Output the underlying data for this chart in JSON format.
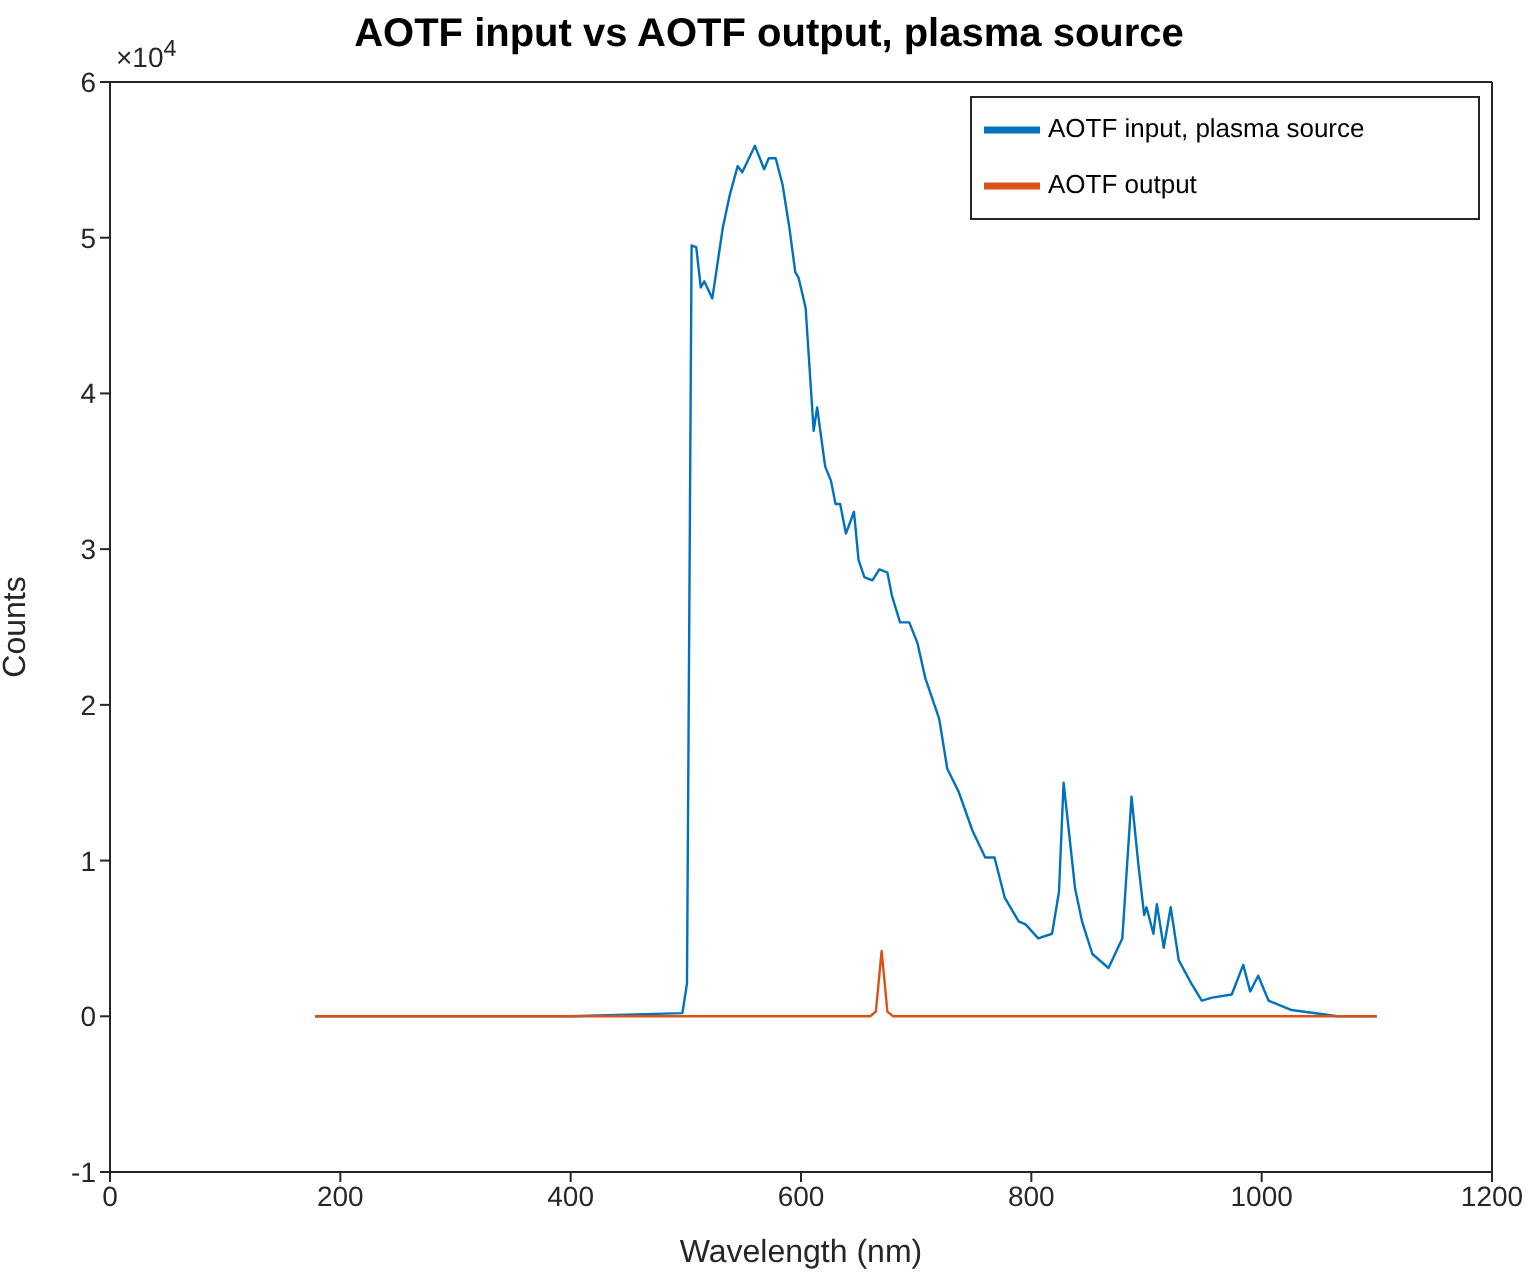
{
  "chart_data": {
    "type": "line",
    "title": "AOTF input vs AOTF output, plasma source",
    "xlabel": "Wavelength (nm)",
    "ylabel": "Counts",
    "annotations": [
      "×10$^{4}$"
    ],
    "xlim": [
      0,
      1200
    ],
    "xticks": [
      0,
      200,
      400,
      600,
      800,
      1000,
      1200
    ],
    "ylim": [
      -1,
      6
    ],
    "yticks": [
      -1,
      0,
      1,
      2,
      3,
      4,
      5,
      6
    ],
    "grid": false,
    "legend": "top right",
    "marker": "none",
    "line_style": "solid",
    "series": [
      {
        "name": "AOTF input, plasma source",
        "color": "#0072bd",
        "x": [
          178,
          400,
          497,
          501,
          505,
          509,
          513,
          516,
          523,
          532,
          538,
          545,
          549,
          560,
          568,
          572,
          578,
          584,
          590,
          595,
          598,
          604,
          611,
          614,
          621,
          626,
          630,
          634,
          639,
          646,
          650,
          655,
          662,
          668,
          675,
          679,
          686,
          694,
          701,
          708,
          720,
          727,
          737,
          749,
          760,
          768,
          777,
          789,
          795,
          806,
          818,
          824,
          828,
          832,
          838,
          844,
          853,
          867,
          879,
          887,
          893,
          898,
          900,
          906,
          909,
          915,
          921,
          928,
          939,
          948,
          957,
          974,
          984,
          990,
          997,
          1006,
          1026,
          1066,
          1100
        ],
        "values": [
          0,
          0,
          0.02,
          0.21,
          4.95,
          4.94,
          4.68,
          4.72,
          4.61,
          5.06,
          5.27,
          5.46,
          5.42,
          5.59,
          5.44,
          5.51,
          5.51,
          5.34,
          5.06,
          4.78,
          4.74,
          4.55,
          3.76,
          3.91,
          3.53,
          3.44,
          3.29,
          3.29,
          3.1,
          3.24,
          2.93,
          2.82,
          2.8,
          2.87,
          2.85,
          2.7,
          2.53,
          2.53,
          2.4,
          2.17,
          1.91,
          1.59,
          1.44,
          1.19,
          1.02,
          1.02,
          0.76,
          0.61,
          0.59,
          0.5,
          0.53,
          0.8,
          1.5,
          1.23,
          0.82,
          0.61,
          0.4,
          0.31,
          0.5,
          1.41,
          0.97,
          0.65,
          0.7,
          0.53,
          0.72,
          0.44,
          0.7,
          0.36,
          0.21,
          0.1,
          0.12,
          0.14,
          0.33,
          0.16,
          0.26,
          0.1,
          0.04,
          0,
          0
        ]
      },
      {
        "name": "AOTF output",
        "color": "#d95319",
        "x": [
          178,
          660,
          665,
          670,
          675,
          680,
          1100
        ],
        "values": [
          0,
          0,
          0.03,
          0.42,
          0.03,
          0,
          0
        ]
      }
    ]
  }
}
